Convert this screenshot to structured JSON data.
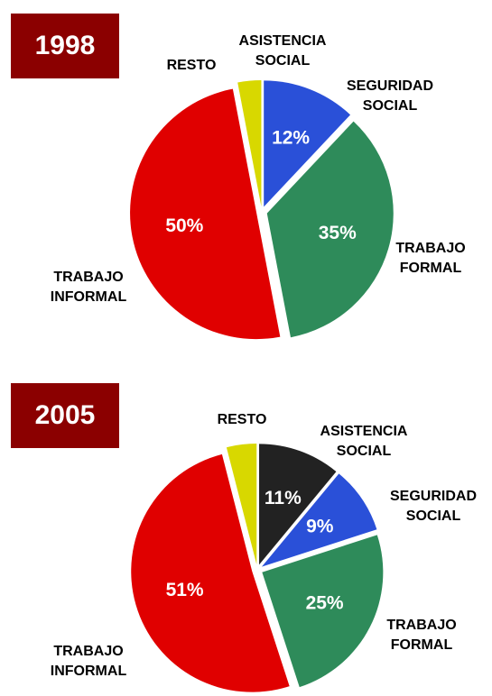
{
  "chart_data": [
    {
      "type": "pie",
      "title": "1998",
      "categories": [
        "ASISTENCIA SOCIAL",
        "SEGURIDAD SOCIAL",
        "TRABAJO FORMAL",
        "TRABAJO INFORMAL",
        "RESTO"
      ],
      "values": [
        0,
        12,
        35,
        50,
        3
      ],
      "value_labels": [
        null,
        "12%",
        "35%",
        "50%",
        null
      ],
      "colors": [
        "#222222",
        "#2a50d8",
        "#2e8b5a",
        "#e00000",
        "#d8d800"
      ]
    },
    {
      "type": "pie",
      "title": "2005",
      "categories": [
        "ASISTENCIA SOCIAL",
        "SEGURIDAD SOCIAL",
        "TRABAJO FORMAL",
        "TRABAJO INFORMAL",
        "RESTO"
      ],
      "values": [
        11,
        9,
        25,
        51,
        4
      ],
      "value_labels": [
        "11%",
        "9%",
        "25%",
        "51%",
        null
      ],
      "colors": [
        "#222222",
        "#2a50d8",
        "#2e8b5a",
        "#e00000",
        "#d8d800"
      ]
    }
  ]
}
